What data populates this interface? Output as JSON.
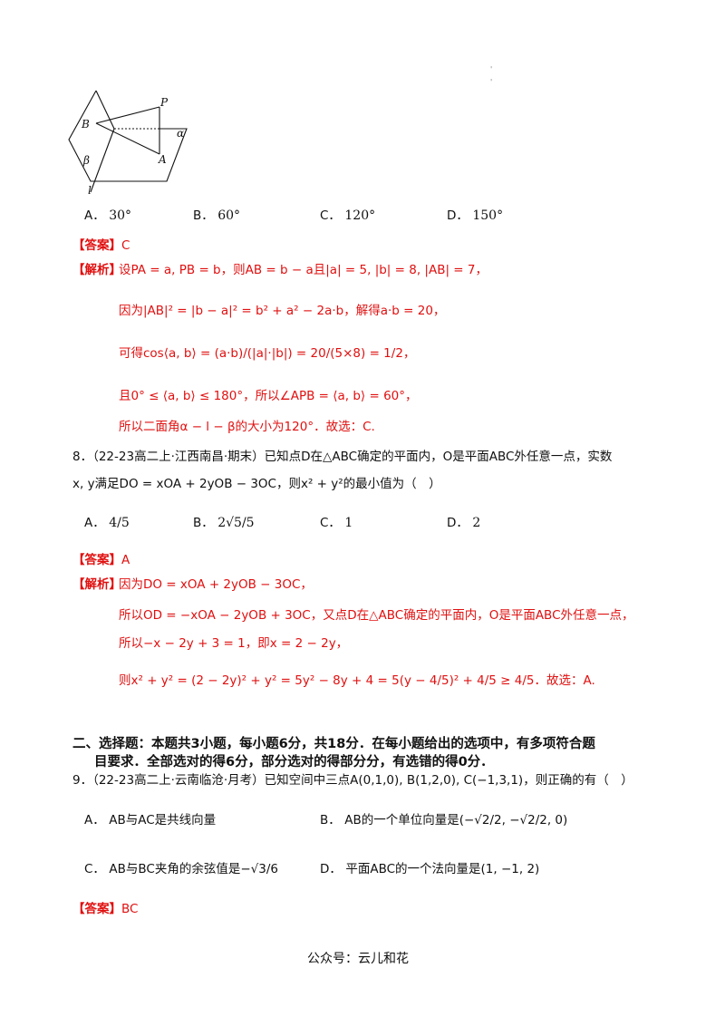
{
  "figure": {
    "label_B": "B",
    "label_P": "P",
    "label_alpha": "α",
    "label_A": "A",
    "label_beta": "β",
    "label_l": "l"
  },
  "q7": {
    "options": [
      {
        "letter": "A．",
        "value": "30°"
      },
      {
        "letter": "B．",
        "value": "60°"
      },
      {
        "letter": "C．",
        "value": "120°"
      },
      {
        "letter": "D．",
        "value": "150°"
      }
    ],
    "answer_tag": "【答案】",
    "answer": "C",
    "analysis_tag": "【解析】",
    "analysis": [
      "设PA = a, PB = b，则AB = b − a且|a| = 5, |b| = 8, |AB| = 7，",
      "因为|AB|² = |b − a|² = b² + a² − 2a·b，解得a·b = 20，",
      "可得cos⟨a, b⟩ = (a·b)/(|a|·|b|) = 20/(5×8) = 1/2，",
      "且0° ≤ ⟨a, b⟩ ≤ 180°，所以∠APB = ⟨a, b⟩ = 60°，",
      "所以二面角α − l − β的大小为120°．故选：C."
    ]
  },
  "q8": {
    "stem_line1": "8．（22-23高二上·江西南昌·期末）已知点D在△ABC确定的平面内，O是平面ABC外任意一点，实数",
    "stem_line2": "x, y满足DO = xOA + 2yOB − 3OC，则x² + y²的最小值为（　）",
    "options": [
      {
        "letter": "A．",
        "value": "4/5"
      },
      {
        "letter": "B．",
        "value": "2√5/5"
      },
      {
        "letter": "C．",
        "value": "1"
      },
      {
        "letter": "D．",
        "value": "2"
      }
    ],
    "answer_tag": "【答案】",
    "answer": "A",
    "analysis_tag": "【解析】",
    "analysis": [
      "因为DO = xOA + 2yOB − 3OC，",
      "所以OD = −xOA − 2yOB + 3OC，又点D在△ABC确定的平面内，O是平面ABC外任意一点，",
      "所以−x − 2y + 3 = 1，即x = 2 − 2y，",
      "则x² + y² = (2 − 2y)² + y² = 5y² − 8y + 4 = 5(y − 4/5)² + 4/5 ≥ 4/5．故选：A."
    ]
  },
  "section2": {
    "title_line1": "二、选择题：本题共3小题，每小题6分，共18分．在每小题给出的选项中，有多项符合题",
    "title_line2": "目要求．全部选对的得6分，部分选对的得部分分，有选错的得0分．"
  },
  "q9": {
    "stem": "9．（22-23高二上·云南临沧·月考）已知空间中三点A(0,1,0), B(1,2,0), C(−1,3,1)，则正确的有（　）",
    "options": [
      {
        "letter": "A．",
        "value": "AB与AC是共线向量"
      },
      {
        "letter": "B．",
        "value": "AB的一个单位向量是(−√2/2, −√2/2, 0)"
      },
      {
        "letter": "C．",
        "value": "AB与BC夹角的余弦值是−√3/6"
      },
      {
        "letter": "D．",
        "value": "平面ABC的一个法向量是(1, −1, 2)"
      }
    ],
    "answer_tag": "【答案】",
    "answer": "BC"
  },
  "footer": "公众号：云儿和花"
}
